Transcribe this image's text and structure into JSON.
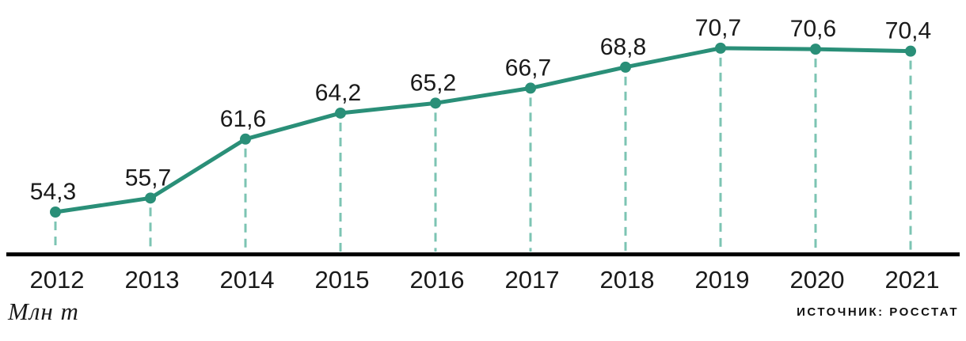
{
  "chart_data": {
    "type": "line",
    "categories": [
      "2012",
      "2013",
      "2014",
      "2015",
      "2016",
      "2017",
      "2018",
      "2019",
      "2020",
      "2021"
    ],
    "values": [
      54.3,
      55.7,
      61.6,
      64.2,
      65.2,
      66.7,
      68.8,
      70.7,
      70.6,
      70.4
    ],
    "value_labels": [
      "54,3",
      "55,7",
      "61,6",
      "64,2",
      "65,2",
      "66,7",
      "68,8",
      "70,7",
      "70,6",
      "70,4"
    ],
    "title": "",
    "xlabel": "",
    "ylabel": "Млн т",
    "unit_label": "Млн т",
    "source_label": "ИСТОЧНИК: РОССТАТ",
    "ylim": [
      50,
      75
    ],
    "legend": "none",
    "grid": "vertical dashed drop-lines from each point to x-axis",
    "colors": {
      "line": "#2a8f78",
      "marker": "#2a8f78",
      "drop_line": "#7cc4b3",
      "axis": "#000000",
      "text": "#1a1a1a"
    }
  }
}
